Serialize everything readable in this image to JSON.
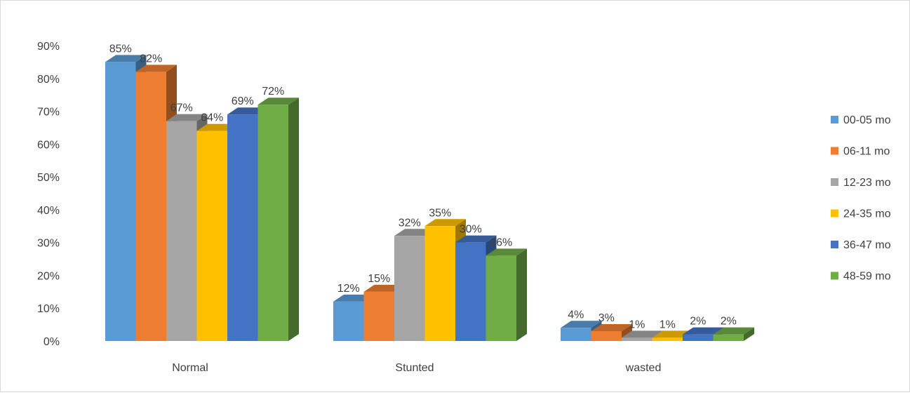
{
  "chart_data": {
    "type": "bar",
    "style": "3d-clustered-column",
    "title": "",
    "xlabel": "",
    "ylabel": "",
    "categories": [
      "Normal",
      "Stunted",
      "wasted"
    ],
    "ylim": [
      0,
      0.9
    ],
    "yticks": [
      "0%",
      "10%",
      "20%",
      "30%",
      "40%",
      "50%",
      "60%",
      "70%",
      "80%",
      "90%"
    ],
    "grid": false,
    "legend_position": "right",
    "series": [
      {
        "name": "00-05 mo",
        "color": "#5b9bd5",
        "values": [
          0.85,
          0.12,
          0.04
        ],
        "labels": [
          "85%",
          "12%",
          "4%"
        ]
      },
      {
        "name": "06-11 mo",
        "color": "#ed7d31",
        "values": [
          0.82,
          0.15,
          0.03
        ],
        "labels": [
          "82%",
          "15%",
          "3%"
        ]
      },
      {
        "name": "12-23 mo",
        "color": "#a5a5a5",
        "values": [
          0.67,
          0.32,
          0.01
        ],
        "labels": [
          "67%",
          "32%",
          "1%"
        ]
      },
      {
        "name": "24-35 mo",
        "color": "#ffc000",
        "values": [
          0.64,
          0.35,
          0.01
        ],
        "labels": [
          "64%",
          "35%",
          "1%"
        ]
      },
      {
        "name": "36-47 mo",
        "color": "#4472c4",
        "values": [
          0.69,
          0.3,
          0.02
        ],
        "labels": [
          "69%",
          "30%",
          "2%"
        ]
      },
      {
        "name": "48-59 mo",
        "color": "#70ad47",
        "values": [
          0.72,
          0.26,
          0.02
        ],
        "labels": [
          "72%",
          "26%",
          "2%"
        ]
      }
    ]
  }
}
